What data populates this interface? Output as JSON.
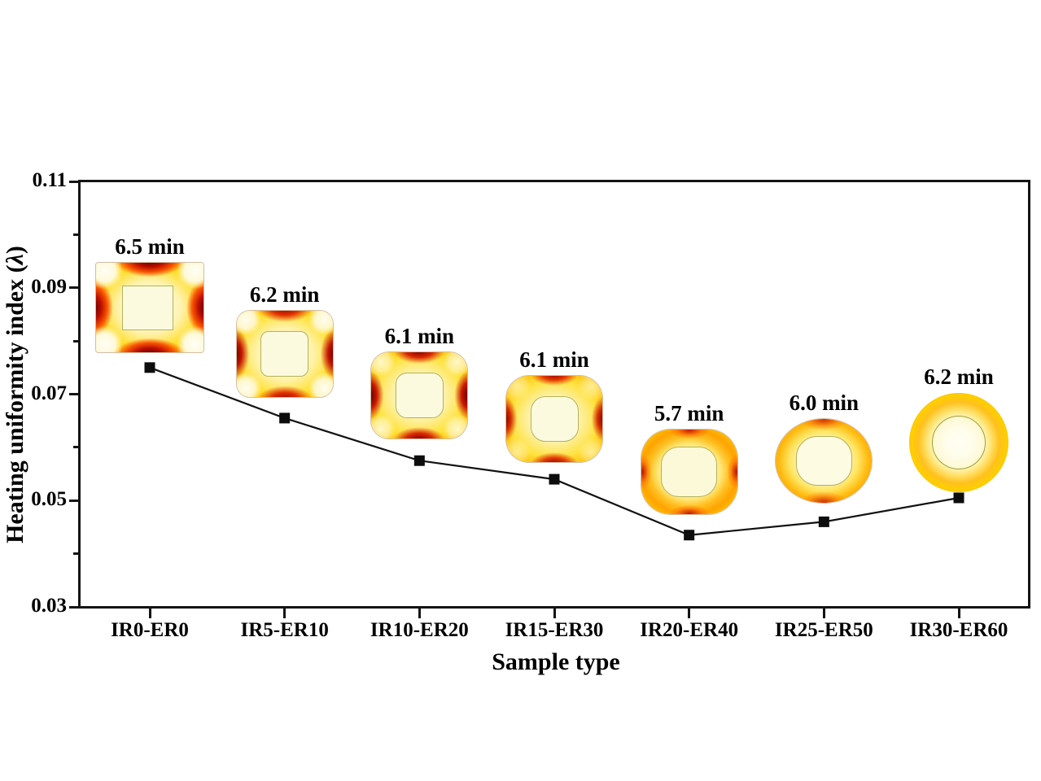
{
  "figure": {
    "background": "#ffffff",
    "text_color": "#000000"
  },
  "chart_data": {
    "type": "line",
    "title": "",
    "categories": [
      "IR0-ER0",
      "IR5-ER10",
      "IR10-ER20",
      "IR15-ER30",
      "IR20-ER40",
      "IR25-ER50",
      "IR30-ER60"
    ],
    "series": [
      {
        "name": "Heating uniformity index",
        "values": [
          0.075,
          0.0655,
          0.0575,
          0.054,
          0.0435,
          0.046,
          0.0505
        ]
      }
    ],
    "xlabel": "Sample type",
    "ylabel": "Heating uniformity index (λ)",
    "ylabel_parts": [
      "Heating uniformity index (",
      "λ",
      ")"
    ],
    "ylim": [
      0.03,
      0.11
    ],
    "yticks": [
      0.03,
      0.05,
      0.07,
      0.09,
      0.11
    ],
    "ytick_labels": [
      "0.03",
      "0.05",
      "0.07",
      "0.09",
      "0.11"
    ],
    "yticks_minor": [
      0.04,
      0.06,
      0.08,
      0.1
    ],
    "grid": false,
    "legend": "none",
    "marker": "filled-square",
    "line_color": "#111111",
    "marker_color": "#0d0d0d",
    "annotations": [
      {
        "category": "IR0-ER0",
        "heating_time": "6.5 min",
        "icon": "thermal-map-sharp-square-icon"
      },
      {
        "category": "IR5-ER10",
        "heating_time": "6.2 min",
        "icon": "thermal-map-rounded-square-icon"
      },
      {
        "category": "IR10-ER20",
        "heating_time": "6.1 min",
        "icon": "thermal-map-rounded-square-icon"
      },
      {
        "category": "IR15-ER30",
        "heating_time": "6.1 min",
        "icon": "thermal-map-rounded-square-icon"
      },
      {
        "category": "IR20-ER40",
        "heating_time": "5.7 min",
        "icon": "thermal-map-squircle-icon"
      },
      {
        "category": "IR25-ER50",
        "heating_time": "6.0 min",
        "icon": "thermal-map-near-circle-icon"
      },
      {
        "category": "IR30-ER60",
        "heating_time": "6.2 min",
        "icon": "thermal-map-circle-icon"
      }
    ],
    "colormap_colors": {
      "coolest": "#fffdf0",
      "mid": "#ffd700",
      "hot": "#ff7300",
      "hottest": "#7a0000"
    }
  }
}
